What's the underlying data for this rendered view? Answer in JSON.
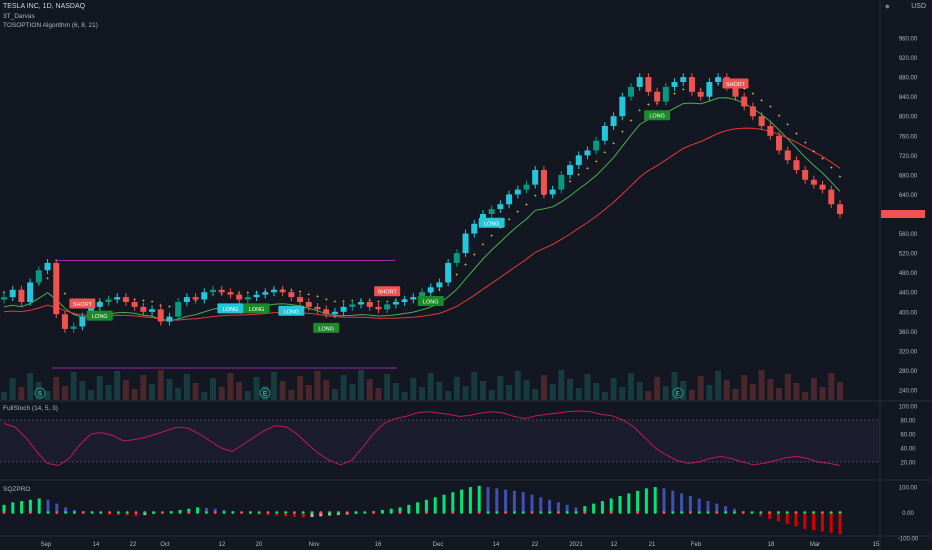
{
  "header": {
    "symbol_line": "TESLA INC, 1D, NASDAQ",
    "indicator_1": "3T_Darvas",
    "indicator_2": "TOSOPTION Algorithm (6, 8, 21)",
    "currency": "USD",
    "stoch_label": "FullStoch (14, 5, 3)",
    "sqz_label": "SQZPRO"
  },
  "colors": {
    "background": "#131722",
    "up": "#26c6da",
    "down": "#ef5350",
    "green_up": "#089981",
    "long_badge": "#26c6da",
    "long_badge_green": "#1b8a2a",
    "short_badge": "#ef5350",
    "darvas_purple": "#9c27b0",
    "darvas_yellow": "#ffeb3b",
    "ema_green": "#4caf50",
    "ema_red": "#e53935",
    "stoch": "#c2185b",
    "sqz_up": "#00e676",
    "sqz_blue": "#3f51b5",
    "sqz_red": "#d50000"
  },
  "chart_data": [
    {
      "type": "candlestick",
      "title": "TESLA INC, 1D, NASDAQ",
      "ylim": [
        240,
        960
      ],
      "y_ticks": [
        "960.00",
        "920.00",
        "880.00",
        "840.00",
        "800.00",
        "760.00",
        "720.00",
        "680.00",
        "640.00",
        "600.00",
        "560.00",
        "520.00",
        "480.00",
        "440.00",
        "400.00",
        "360.00",
        "320.00",
        "280.00",
        "240.00"
      ],
      "x_ticks": [
        "Sep",
        "14",
        "22",
        "Oct",
        "12",
        "20",
        "Nov",
        "16",
        "Dec",
        "14",
        "22",
        "2021",
        "12",
        "21",
        "Feb",
        "18",
        "Mar",
        "15"
      ],
      "last_price_label": "",
      "close": [
        430,
        445,
        420,
        460,
        485,
        500,
        395,
        365,
        370,
        390,
        410,
        420,
        425,
        430,
        420,
        410,
        400,
        405,
        380,
        390,
        420,
        430,
        425,
        440,
        445,
        440,
        435,
        425,
        430,
        435,
        440,
        445,
        440,
        430,
        420,
        410,
        405,
        395,
        400,
        410,
        415,
        420,
        410,
        405,
        415,
        420,
        425,
        430,
        440,
        450,
        460,
        500,
        520,
        560,
        580,
        600,
        610,
        620,
        640,
        650,
        660,
        690,
        640,
        650,
        680,
        700,
        720,
        730,
        750,
        780,
        800,
        840,
        860,
        880,
        850,
        830,
        860,
        870,
        880,
        850,
        840,
        870,
        880,
        860,
        840,
        820,
        800,
        780,
        760,
        730,
        710,
        690,
        670,
        660,
        650,
        620,
        600
      ],
      "badges": [
        {
          "text": "SHORT",
          "type": "short",
          "index": 9
        },
        {
          "text": "LONG",
          "type": "long_green",
          "index": 11
        },
        {
          "text": "LONG",
          "type": "long",
          "index": 26
        },
        {
          "text": "LONG",
          "type": "long_green",
          "index": 29
        },
        {
          "text": "LONG",
          "type": "long",
          "index": 33
        },
        {
          "text": "LONG",
          "type": "long_green",
          "index": 37
        },
        {
          "text": "SHORT",
          "type": "short",
          "index": 44
        },
        {
          "text": "LONG",
          "type": "long_green",
          "index": 49
        },
        {
          "text": "LONG",
          "type": "long",
          "index": 56
        },
        {
          "text": "LONG",
          "type": "long_green",
          "index": 75
        },
        {
          "text": "SHORT",
          "type": "short",
          "index": 84
        }
      ],
      "event_markers": [
        "S",
        "E",
        "E"
      ]
    },
    {
      "type": "line",
      "title": "FullStoch (14, 5, 3)",
      "ylim": [
        0,
        100
      ],
      "y_ticks": [
        "100.00",
        "80.00",
        "60.00",
        "40.00",
        "20.00"
      ],
      "levels": [
        80,
        20
      ],
      "values": [
        75,
        70,
        55,
        35,
        18,
        15,
        25,
        45,
        60,
        62,
        58,
        50,
        52,
        55,
        60,
        65,
        70,
        68,
        60,
        50,
        40,
        35,
        45,
        55,
        65,
        72,
        70,
        60,
        45,
        32,
        22,
        16,
        22,
        40,
        60,
        75,
        82,
        85,
        90,
        92,
        90,
        88,
        85,
        87,
        90,
        92,
        90,
        85,
        82,
        86,
        88,
        90,
        92,
        93,
        92,
        88,
        86,
        80,
        70,
        55,
        40,
        30,
        22,
        18,
        20,
        25,
        28,
        25,
        20,
        16,
        18,
        22,
        26,
        28,
        25,
        20,
        18,
        15
      ]
    },
    {
      "type": "bar",
      "title": "SQZPRO",
      "ylim": [
        -120,
        120
      ],
      "y_ticks": [
        "100.00",
        "0.00",
        "-100.00"
      ],
      "values": [
        30,
        40,
        45,
        50,
        55,
        50,
        35,
        20,
        10,
        5,
        0,
        -5,
        -8,
        -10,
        -12,
        -15,
        -10,
        -5,
        0,
        5,
        10,
        15,
        20,
        18,
        15,
        10,
        5,
        0,
        -5,
        -8,
        -10,
        -12,
        -15,
        -18,
        -20,
        -18,
        -15,
        -12,
        -10,
        -8,
        -5,
        0,
        5,
        10,
        15,
        20,
        30,
        40,
        50,
        60,
        70,
        80,
        90,
        100,
        105,
        100,
        95,
        90,
        85,
        80,
        70,
        60,
        50,
        40,
        30,
        20,
        25,
        35,
        45,
        55,
        65,
        75,
        85,
        95,
        100,
        95,
        85,
        75,
        65,
        55,
        45,
        35,
        25,
        15,
        5,
        -5,
        -15,
        -25,
        -35,
        -45,
        -55,
        -65,
        -70,
        -75,
        -80,
        -85
      ]
    }
  ]
}
